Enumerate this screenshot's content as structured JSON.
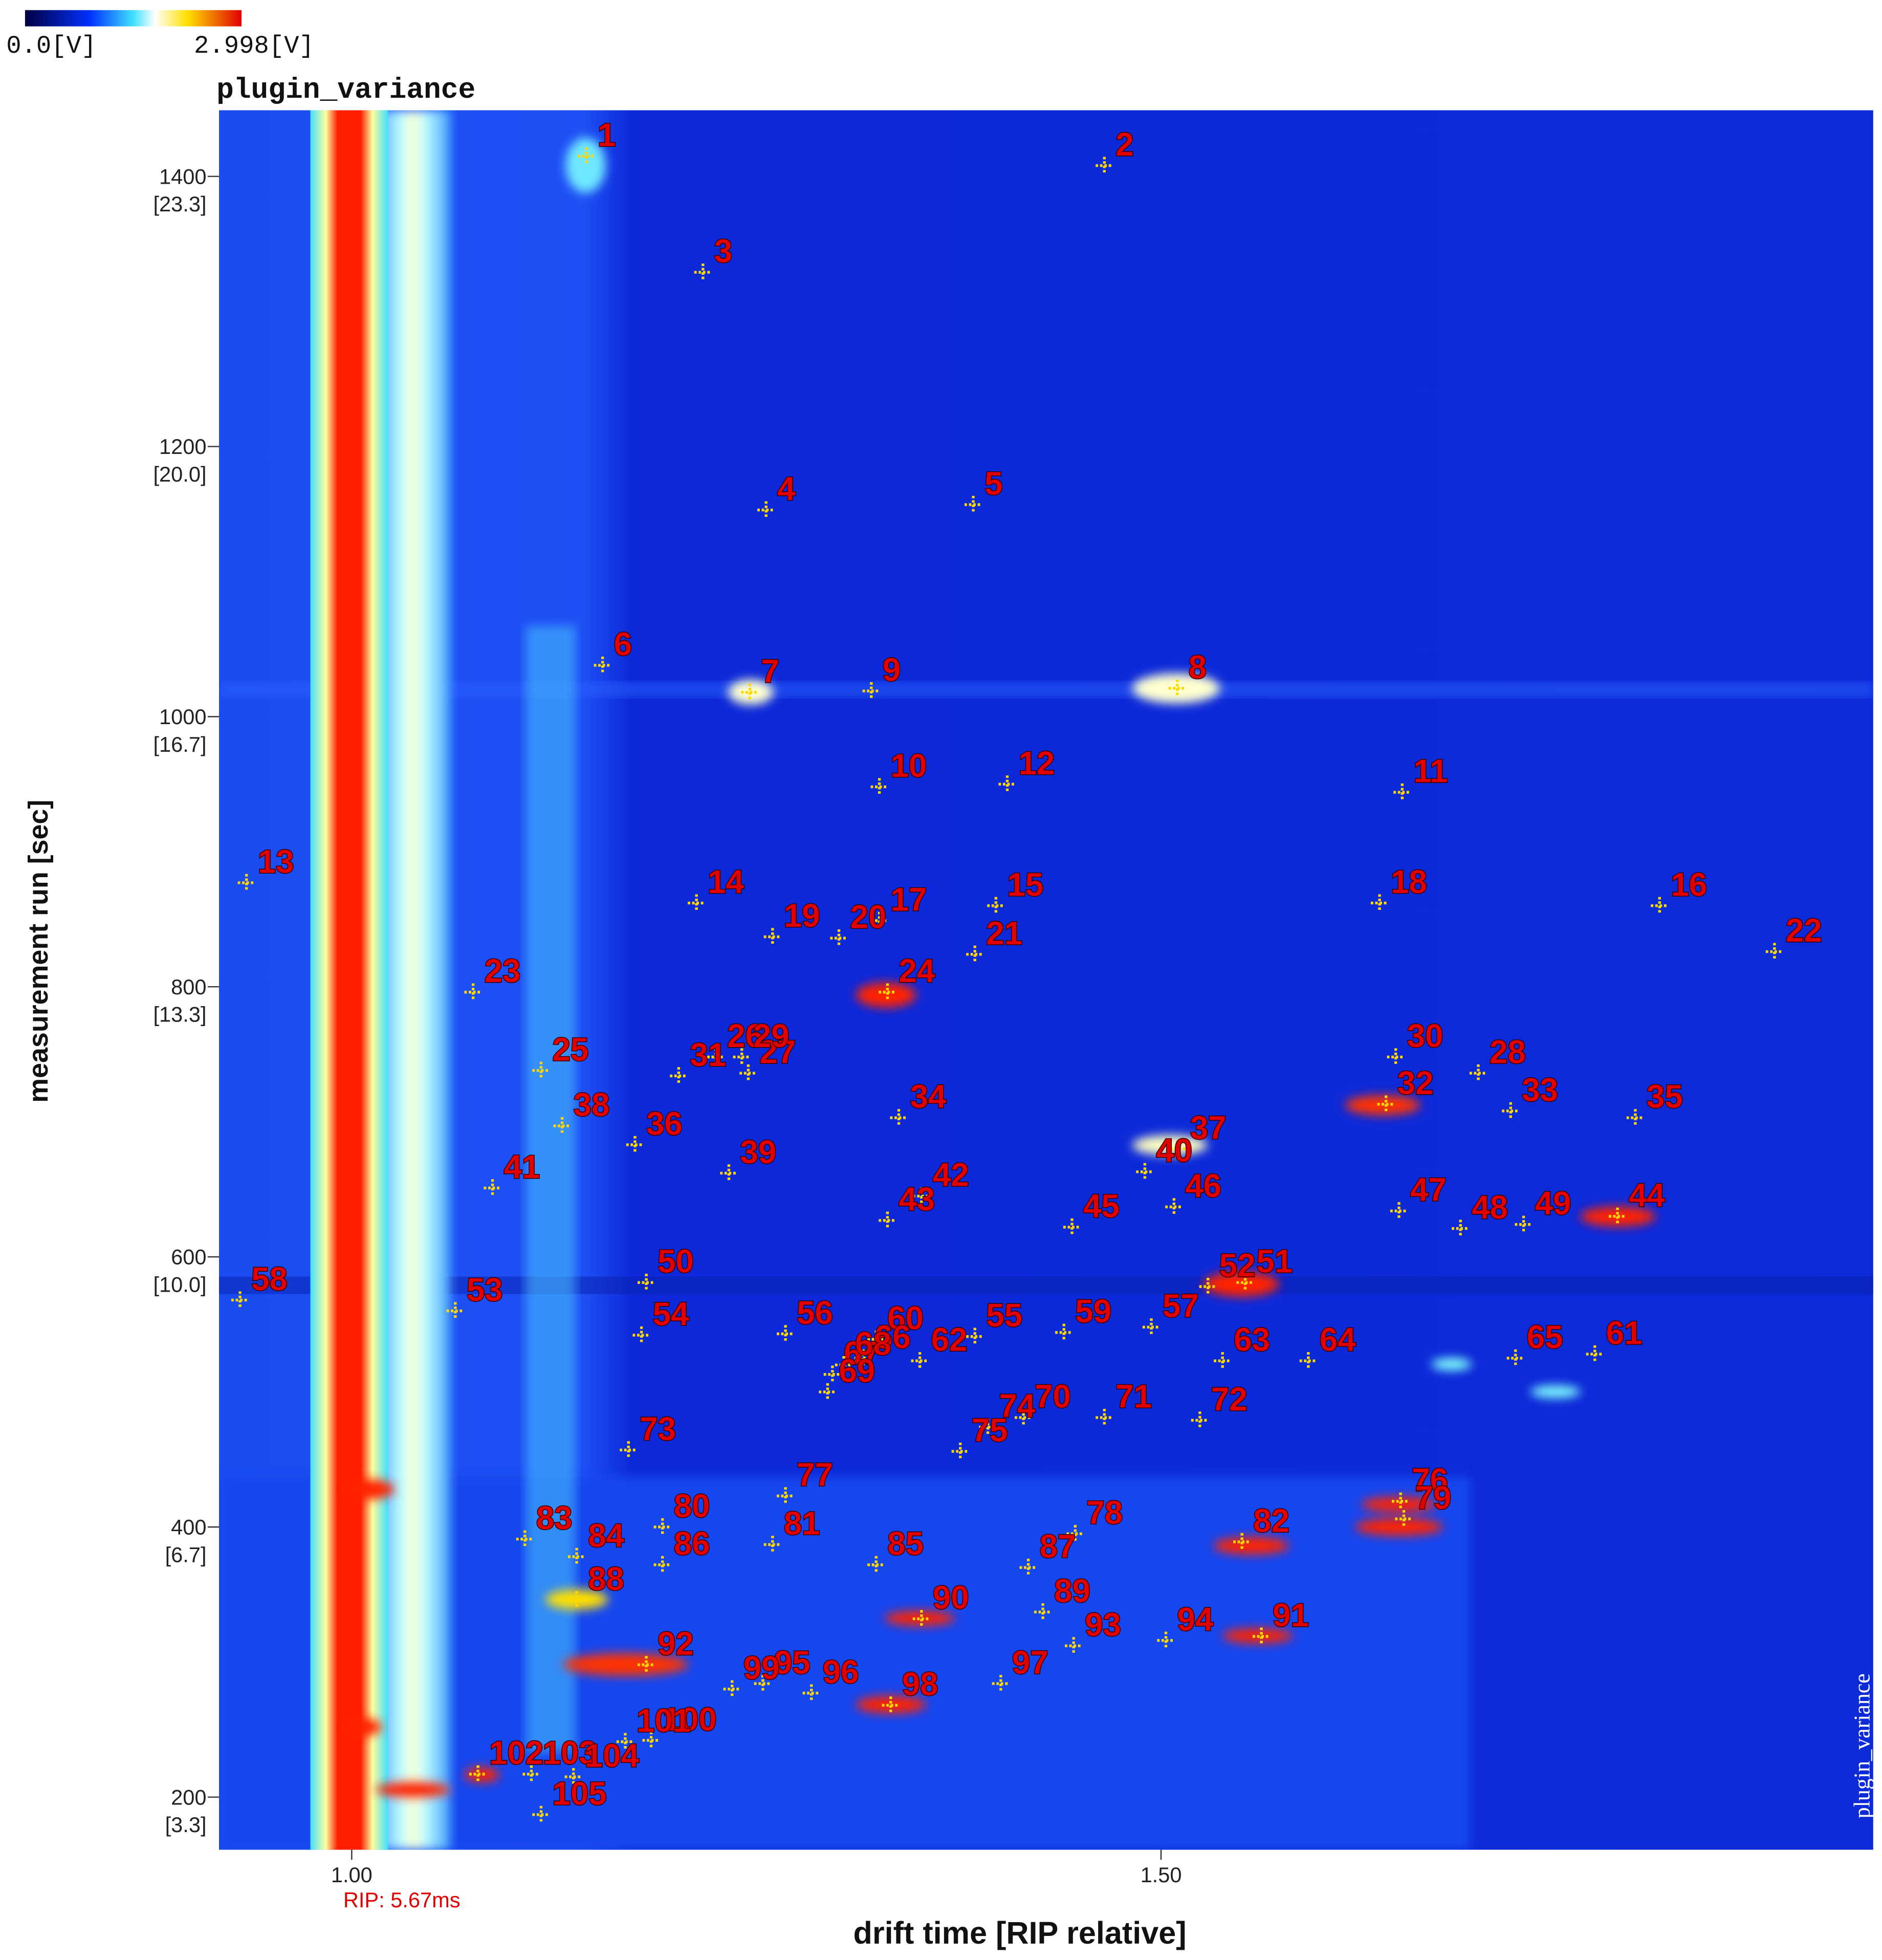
{
  "chart_data": {
    "type": "scatter",
    "title": "plugin_variance",
    "side_label": "plugin_variance",
    "x_label": "drift time [RIP relative]",
    "y_label": "measurement run [sec]",
    "annotation": "RIP: 5.67ms",
    "colorbar": {
      "min_label": "0.0[V]",
      "max_label": "2.998[V]"
    },
    "xlim": [
      0.918,
      1.94
    ],
    "ylim": [
      161,
      1449
    ],
    "xticks": [
      {
        "value": 1,
        "label": "1.00"
      },
      {
        "value": 1.5,
        "label": "1.50"
      }
    ],
    "yticks": [
      {
        "value": 200,
        "label": "200",
        "sublabel": "[3.3]"
      },
      {
        "value": 400,
        "label": "400",
        "sublabel": "[6.7]"
      },
      {
        "value": 600,
        "label": "600",
        "sublabel": "[10.0]"
      },
      {
        "value": 800,
        "label": "800",
        "sublabel": "[13.3]"
      },
      {
        "value": 1000,
        "label": "1000",
        "sublabel": "[16.7]"
      },
      {
        "value": 1200,
        "label": "1200",
        "sublabel": "[20.0]"
      },
      {
        "value": 1400,
        "label": "1400",
        "sublabel": "[23.3]"
      }
    ],
    "marker_color": "#ffd800",
    "label_color": "#e00000",
    "labels": [
      "1",
      "2",
      "3",
      "4",
      "5",
      "6",
      "7",
      "8",
      "9",
      "10",
      "11",
      "12",
      "13",
      "14",
      "15",
      "16",
      "17",
      "18",
      "19",
      "20",
      "21",
      "22",
      "23",
      "24",
      "25",
      "26",
      "27",
      "28",
      "29",
      "30",
      "31",
      "32",
      "33",
      "34",
      "35",
      "36",
      "37",
      "38",
      "39",
      "40",
      "41",
      "42",
      "43",
      "44",
      "45",
      "46",
      "47",
      "48",
      "49",
      "50",
      "51",
      "52",
      "53",
      "54",
      "55",
      "56",
      "57",
      "58",
      "59",
      "60",
      "61",
      "62",
      "63",
      "64",
      "65",
      "66",
      "67",
      "68",
      "69",
      "70",
      "71",
      "72",
      "73",
      "74",
      "75",
      "76",
      "77",
      "78",
      "79",
      "80",
      "81",
      "82",
      "83",
      "84",
      "85",
      "86",
      "87",
      "88",
      "89",
      "90",
      "91",
      "92",
      "93",
      "94",
      "95",
      "96",
      "97",
      "98",
      "99",
      "100",
      "101",
      "102",
      "103",
      "104",
      "105"
    ],
    "x": [
      1.145,
      1.465,
      1.217,
      1.256,
      1.384,
      1.155,
      1.246,
      1.51,
      1.321,
      1.326,
      1.649,
      1.405,
      0.935,
      1.213,
      1.398,
      1.808,
      1.326,
      1.635,
      1.26,
      1.301,
      1.385,
      1.879,
      1.075,
      1.331,
      1.117,
      1.225,
      1.245,
      1.696,
      1.241,
      1.645,
      1.202,
      1.639,
      1.716,
      1.338,
      1.793,
      1.175,
      1.511,
      1.13,
      1.233,
      1.49,
      1.087,
      1.352,
      1.331,
      1.782,
      1.445,
      1.508,
      1.647,
      1.685,
      1.724,
      1.182,
      1.552,
      1.529,
      1.064,
      1.179,
      1.385,
      1.268,
      1.494,
      0.931,
      1.44,
      1.324,
      1.768,
      1.351,
      1.538,
      1.591,
      1.719,
      1.316,
      1.297,
      1.304,
      1.294,
      1.415,
      1.465,
      1.524,
      1.171,
      1.393,
      1.376,
      1.648,
      1.268,
      1.447,
      1.65,
      1.192,
      1.26,
      1.55,
      1.107,
      1.139,
      1.324,
      1.192,
      1.418,
      1.139,
      1.427,
      1.352,
      1.562,
      1.182,
      1.446,
      1.503,
      1.254,
      1.284,
      1.401,
      1.333,
      1.235,
      1.185,
      1.169,
      1.078,
      1.111,
      1.137,
      1.117
    ],
    "values": [
      1415,
      1408,
      1329,
      1153,
      1157,
      1038,
      1018,
      1021,
      1019,
      948,
      944,
      950,
      877,
      862,
      860,
      860,
      849,
      862,
      837,
      836,
      824,
      826,
      796,
      796,
      738,
      748,
      736,
      736,
      748,
      748,
      734,
      713,
      708,
      703,
      703,
      683,
      680,
      697,
      662,
      663,
      651,
      645,
      627,
      630,
      622,
      637,
      634,
      621,
      624,
      581,
      581,
      578,
      560,
      542,
      541,
      543,
      548,
      568,
      544,
      539,
      528,
      523,
      523,
      523,
      525,
      525,
      513,
      520,
      500,
      481,
      481,
      479,
      457,
      474,
      456,
      419,
      423,
      395,
      406,
      400,
      387,
      389,
      391,
      378,
      372,
      372,
      370,
      346,
      337,
      332,
      319,
      298,
      312,
      316,
      284,
      277,
      284,
      268,
      280,
      242,
      241,
      217,
      217,
      215,
      187
    ]
  }
}
